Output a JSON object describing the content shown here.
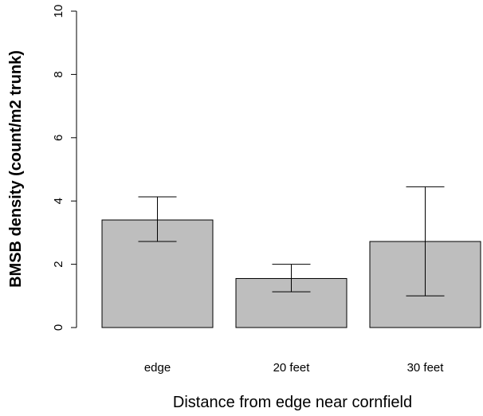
{
  "chart_data": {
    "type": "bar",
    "title": "",
    "xlabel": "Distance from edge near cornfield",
    "ylabel": "BMSB density (count/m2 trunk)",
    "ylim": [
      0,
      10
    ],
    "yticks": [
      0,
      2,
      4,
      6,
      8,
      10
    ],
    "categories": [
      "edge",
      "20 feet",
      "30 feet"
    ],
    "values": [
      3.4,
      1.55,
      2.72
    ],
    "error_low": [
      2.72,
      1.13,
      1.0
    ],
    "error_high": [
      4.13,
      2.0,
      4.45
    ],
    "bar_color": "#bebebe",
    "bar_edge_color": "#000000",
    "grid": false,
    "legend": "none"
  }
}
